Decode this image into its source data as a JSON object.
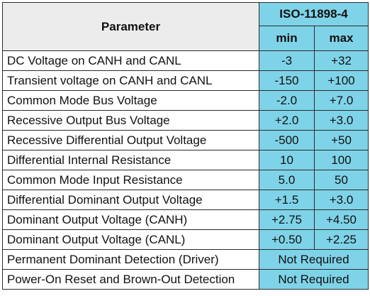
{
  "header": {
    "parameter": "Parameter",
    "standard": "ISO-11898-4",
    "min": "min",
    "max": "max"
  },
  "rows": [
    {
      "param": "DC Voltage on CANH and CANL",
      "min": "-3",
      "max": "+32"
    },
    {
      "param": "Transient voltage on CANH and CANL",
      "min": "-150",
      "max": "+100"
    },
    {
      "param": "Common Mode Bus Voltage",
      "min": "-2.0",
      "max": "+7.0"
    },
    {
      "param": "Recessive Output Bus Voltage",
      "min": "+2.0",
      "max": "+3.0"
    },
    {
      "param": "Recessive Differential Output Voltage",
      "min": "-500",
      "max": "+50"
    },
    {
      "param": "Differential Internal Resistance",
      "min": "10",
      "max": "100"
    },
    {
      "param": "Common Mode Input Resistance",
      "min": "5.0",
      "max": "50"
    },
    {
      "param": "Differential Dominant Output Voltage",
      "min": "+1.5",
      "max": "+3.0"
    },
    {
      "param": "Dominant Output Voltage (CANH)",
      "min": "+2.75",
      "max": "+4.50"
    },
    {
      "param": "Dominant Output Voltage (CANL)",
      "min": "+0.50",
      "max": "+2.25"
    }
  ],
  "merged_rows": [
    {
      "param": "Permanent Dominant Detection (Driver)",
      "value": "Not Required"
    },
    {
      "param": "Power-On Reset and Brown-Out Detection",
      "value": "Not Required"
    }
  ]
}
